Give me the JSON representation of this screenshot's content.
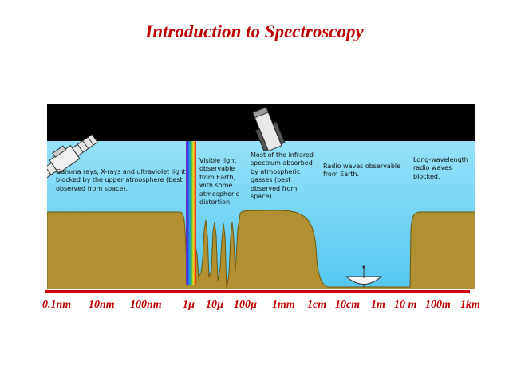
{
  "title": "Introduction to Spectroscopy",
  "captions": {
    "gamma": "Gamma rays, X-rays and ultraviolet light blocked by the upper atmosphere (best observed from space).",
    "visible": "Visible light observable from Earth, with some atmospheric distortion.",
    "infrared": "Most of the infrared spectrum absorbed by atmospheric gasses (best observed from space).",
    "radio": "Radio waves observable from Earth.",
    "long_wave": "Long-wavelength radio waves blocked."
  },
  "scale_ticks": [
    "0.1nm",
    "10nm",
    "100nm",
    "1µ",
    "10µ",
    "100µ",
    "1mm",
    "1cm",
    "10cm",
    "1m",
    "10 m",
    "100m",
    "1km"
  ],
  "colors": {
    "title": "#c00000",
    "sky_top": "#a6e8fb",
    "sky_bottom": "#55c7f2",
    "space": "#000000",
    "opacity_fill": "#b09030",
    "scale": "#d40000"
  },
  "icons": {
    "satellite": "satellite-icon",
    "space_telescope": "space-telescope-icon",
    "radio_dish": "radio-dish-icon",
    "visible_spectrum": "rainbow-band"
  }
}
